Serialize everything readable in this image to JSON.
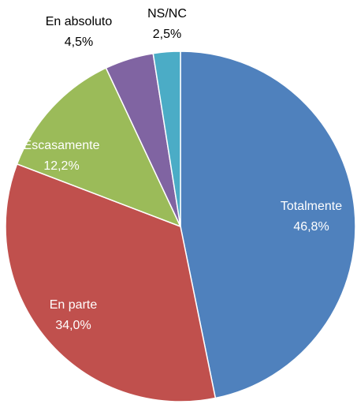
{
  "chart_data": {
    "type": "pie",
    "categories": [
      "Totalmente",
      "En parte",
      "Escasamente",
      "En absoluto",
      "NS/NC"
    ],
    "values": [
      46.8,
      34.0,
      12.2,
      4.5,
      2.5
    ],
    "value_labels": [
      "46,8%",
      "34,0%",
      "12,2%",
      "4,5%",
      "2,5%"
    ],
    "colors": [
      "#4f81bd",
      "#c0504d",
      "#9bbb59",
      "#8064a2",
      "#4bacc6"
    ]
  }
}
